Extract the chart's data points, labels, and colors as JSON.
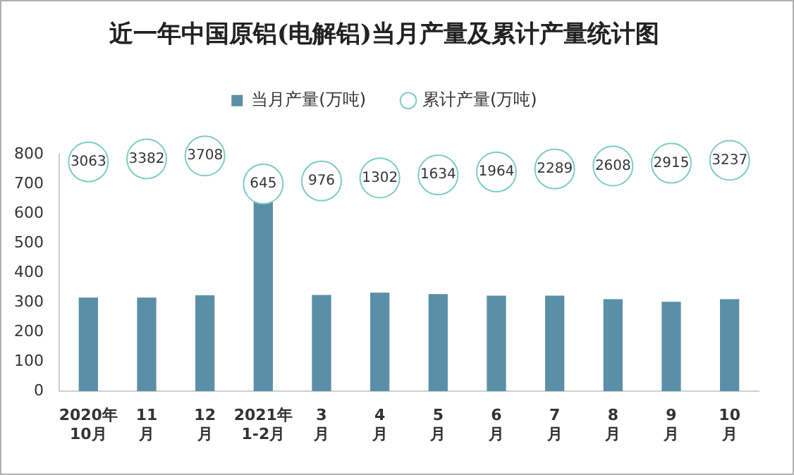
{
  "chart_data": {
    "type": "bar",
    "title": "近一年中国原铝(电解铝)当月产量及累计产量统计图",
    "categories": [
      "2020年\n10月",
      "11\n月",
      "12\n月",
      "2021年\n1-2月",
      "3\n月",
      "4\n月",
      "5\n月",
      "6\n月",
      "7\n月",
      "8\n月",
      "9\n月",
      "10\n月"
    ],
    "series": [
      {
        "name": "当月产量(万吨)",
        "color": "#5b8fa8",
        "values": [
          316,
          316,
          324,
          645,
          325,
          333,
          328,
          323,
          323,
          311,
          302,
          311
        ]
      },
      {
        "name": "累计产量(万吨)",
        "type": "scatter",
        "axis": "y2",
        "color": "#7ecdc4",
        "values": [
          3063,
          3382,
          3708,
          645,
          976,
          1302,
          1634,
          1964,
          2289,
          2608,
          2915,
          3237
        ],
        "value_labels": [
          "3063",
          "3382",
          "3708",
          "645",
          "976",
          "1302",
          "1634",
          "1964",
          "2289",
          "2608",
          "2915",
          "3237"
        ]
      }
    ],
    "ylim": [
      0,
      800
    ],
    "yticks": [
      0,
      100,
      200,
      300,
      400,
      500,
      600,
      700,
      800
    ],
    "y2lim": [
      -22000,
      3900
    ],
    "tick_labels": "xy",
    "grid": false,
    "legend": "top",
    "marker": "circle"
  }
}
